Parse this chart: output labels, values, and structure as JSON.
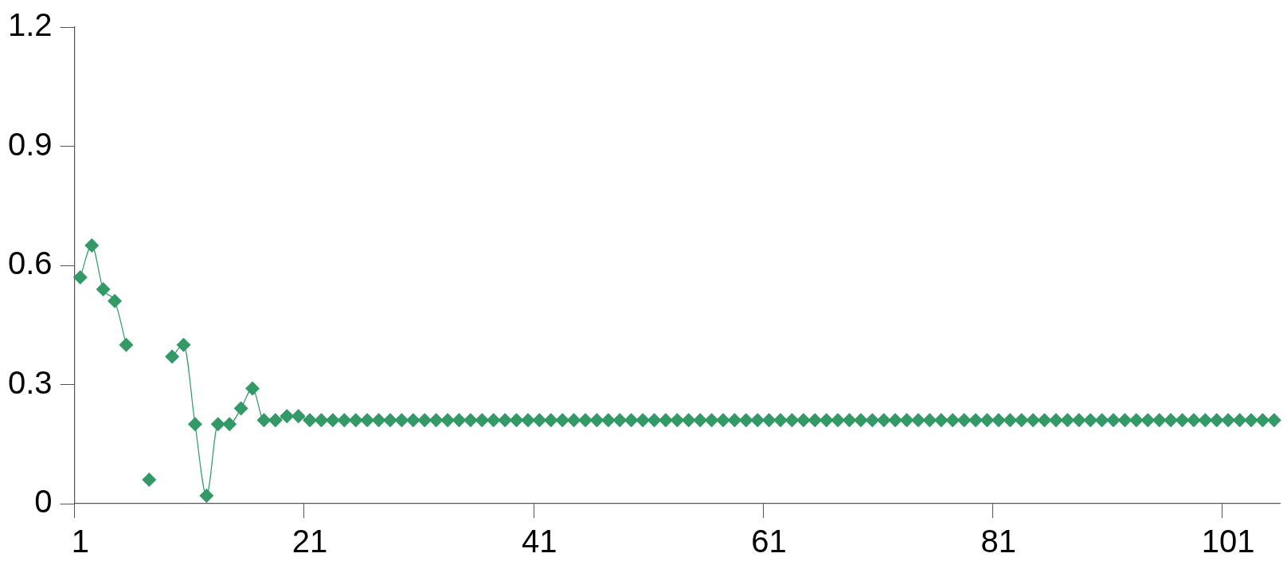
{
  "chart_data": {
    "type": "line",
    "categories": [
      "1",
      null,
      null,
      null,
      null,
      null,
      null,
      null,
      null,
      null,
      null,
      null,
      null,
      null,
      null,
      null,
      null,
      null,
      null,
      null,
      "21",
      null,
      null,
      null,
      null,
      null,
      null,
      null,
      null,
      null,
      null,
      null,
      null,
      null,
      null,
      null,
      null,
      null,
      null,
      null,
      "41",
      null,
      null,
      null,
      null,
      null,
      null,
      null,
      null,
      null,
      null,
      null,
      null,
      null,
      null,
      null,
      null,
      null,
      null,
      null,
      "61",
      null,
      null,
      null,
      null,
      null,
      null,
      null,
      null,
      null,
      null,
      null,
      null,
      null,
      null,
      null,
      null,
      null,
      null,
      null,
      "81",
      null,
      null,
      null,
      null,
      null,
      null,
      null,
      null,
      null,
      null,
      null,
      null,
      null,
      null,
      null,
      null,
      null,
      null,
      null,
      "101",
      null,
      null,
      null,
      null
    ],
    "series": [
      {
        "color": "#339966",
        "values": [
          0.57,
          0.65,
          0.54,
          0.51,
          0.4,
          null,
          0.06,
          null,
          0.37,
          0.4,
          0.2,
          0.02,
          0.2,
          0.2,
          0.24,
          0.29,
          0.21,
          0.21,
          0.22,
          0.22,
          0.21,
          0.21,
          0.21,
          0.21,
          0.21,
          0.21,
          0.21,
          0.21,
          0.21,
          0.21,
          0.21,
          0.21,
          0.21,
          0.21,
          0.21,
          0.21,
          0.21,
          0.21,
          0.21,
          0.21,
          0.21,
          0.21,
          0.21,
          0.21,
          0.21,
          0.21,
          0.21,
          0.21,
          0.21,
          0.21,
          0.21,
          0.21,
          0.21,
          0.21,
          0.21,
          0.21,
          0.21,
          0.21,
          0.21,
          0.21,
          0.21,
          0.21,
          0.21,
          0.21,
          0.21,
          0.21,
          0.21,
          0.21,
          0.21,
          0.21,
          0.21,
          0.21,
          0.21,
          0.21,
          0.21,
          0.21,
          0.21,
          0.21,
          0.21,
          0.21,
          0.21,
          0.21,
          0.21,
          0.21,
          0.21,
          0.21,
          0.21,
          0.21,
          0.21,
          0.21,
          0.21,
          0.21,
          0.21,
          0.21,
          0.21,
          0.21,
          0.21,
          0.21,
          0.21,
          0.21,
          0.21,
          0.21,
          0.21,
          0.21,
          0.21
        ]
      }
    ],
    "ylim": [
      0,
      1.2
    ],
    "yticks": [
      0,
      0.3,
      0.6,
      0.9,
      1.2
    ],
    "marker": "diamond",
    "line_style": "solid",
    "grid": false,
    "legend": false
  }
}
